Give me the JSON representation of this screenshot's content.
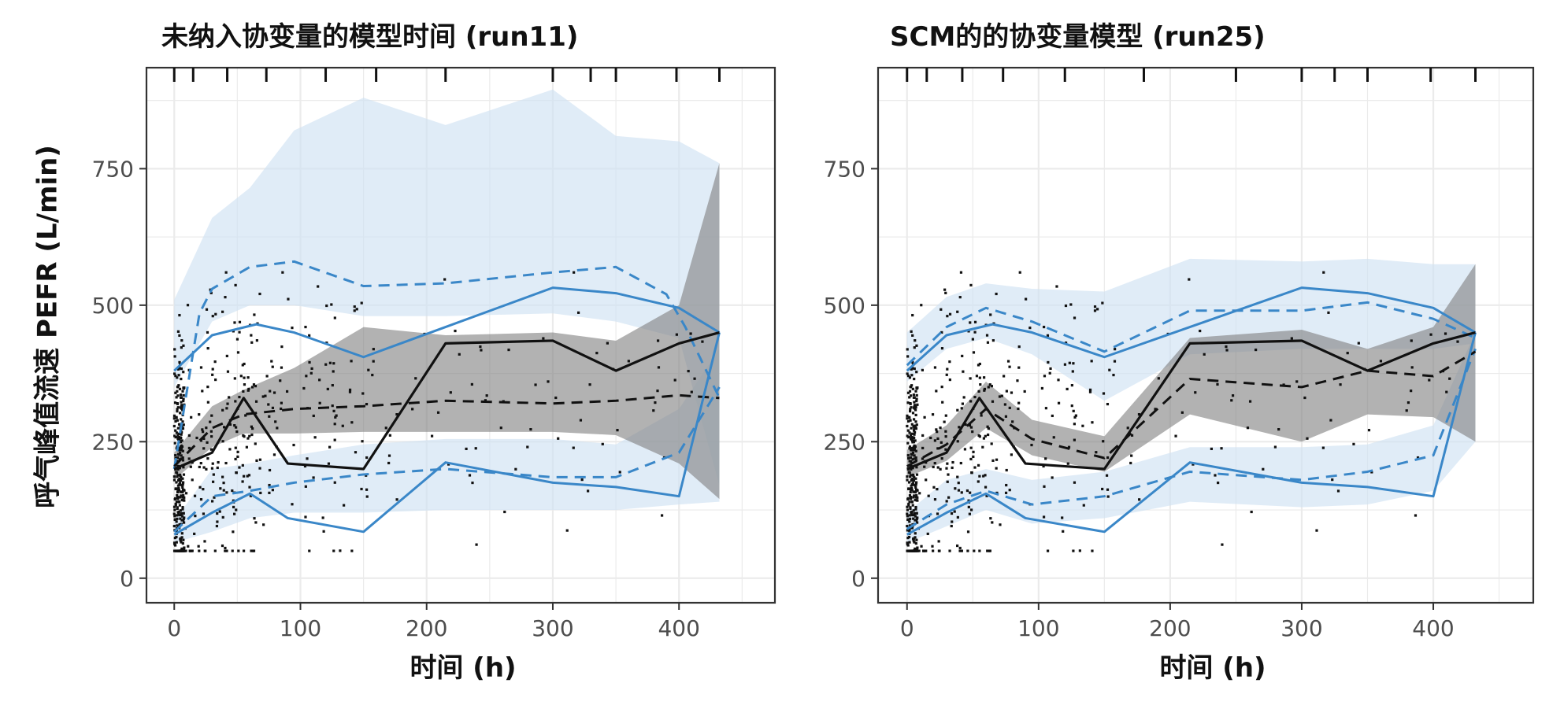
{
  "shared": {
    "ylabel": "呼气峰值流速 PEFR (L/min)",
    "xlabel": "时间 (h)"
  },
  "chart_data": [
    {
      "type": "line",
      "title": "未纳入协变量的模型时间 (run11)",
      "xlabel": "时间 (h)",
      "ylabel": "呼气峰值流速 PEFR (L/min)",
      "xlim": [
        -22,
        476
      ],
      "ylim": [
        -45,
        935
      ],
      "xticks": [
        0,
        100,
        200,
        300,
        400
      ],
      "yticks": [
        0,
        250,
        500,
        750
      ],
      "grid": true,
      "bin_times": [
        0,
        15,
        42,
        73,
        120,
        160,
        215,
        300,
        330,
        350,
        398,
        432
      ],
      "series": [
        {
          "kind": "observed_median",
          "x": [
            0,
            30,
            55,
            90,
            150,
            215,
            300,
            350,
            400,
            432
          ],
          "values": [
            200,
            230,
            330,
            210,
            200,
            430,
            435,
            380,
            430,
            450
          ]
        },
        {
          "kind": "observed_p95",
          "x": [
            0,
            30,
            65,
            95,
            150,
            215,
            300,
            350,
            400,
            432
          ],
          "values": [
            380,
            445,
            465,
            450,
            405,
            460,
            532,
            522,
            495,
            450
          ]
        },
        {
          "kind": "observed_p5",
          "x": [
            0,
            30,
            60,
            90,
            150,
            215,
            300,
            350,
            400,
            432
          ],
          "values": [
            80,
            120,
            155,
            110,
            85,
            212,
            175,
            167,
            150,
            450
          ]
        },
        {
          "kind": "predicted_median",
          "x": [
            0,
            30,
            55,
            95,
            150,
            215,
            300,
            350,
            400,
            432
          ],
          "values": [
            205,
            275,
            300,
            310,
            315,
            325,
            320,
            325,
            335,
            330
          ]
        },
        {
          "kind": "predicted_p95",
          "x": [
            0,
            20,
            30,
            60,
            95,
            150,
            215,
            300,
            350,
            390,
            405,
            432
          ],
          "values": [
            200,
            485,
            530,
            570,
            580,
            535,
            540,
            560,
            570,
            520,
            460,
            330
          ]
        },
        {
          "kind": "predicted_p5",
          "x": [
            0,
            30,
            60,
            95,
            150,
            215,
            300,
            350,
            400,
            432
          ],
          "values": [
            85,
            150,
            160,
            175,
            190,
            200,
            185,
            185,
            230,
            350
          ]
        },
        {
          "kind": "ci_median",
          "x": [
            0,
            30,
            55,
            95,
            150,
            215,
            300,
            350,
            400,
            432
          ],
          "low": [
            180,
            240,
            265,
            265,
            268,
            268,
            268,
            262,
            210,
            145
          ],
          "high": [
            230,
            315,
            345,
            385,
            460,
            445,
            450,
            435,
            500,
            760
          ]
        },
        {
          "kind": "ci_p95",
          "x": [
            0,
            30,
            60,
            95,
            150,
            215,
            300,
            350,
            400,
            432
          ],
          "low": [
            350,
            470,
            500,
            500,
            480,
            480,
            485,
            470,
            440,
            170
          ],
          "high": [
            510,
            660,
            715,
            820,
            880,
            830,
            895,
            810,
            800,
            760
          ]
        },
        {
          "kind": "ci_p5",
          "x": [
            0,
            30,
            60,
            95,
            150,
            215,
            300,
            350,
            400,
            432
          ],
          "low": [
            65,
            85,
            110,
            120,
            120,
            125,
            125,
            125,
            135,
            140
          ],
          "high": [
            105,
            200,
            210,
            225,
            245,
            255,
            255,
            245,
            310,
            420
          ]
        }
      ]
    },
    {
      "type": "line",
      "title": "SCM的的协变量模型 (run25)",
      "xlabel": "时间 (h)",
      "ylabel": "",
      "xlim": [
        -22,
        476
      ],
      "ylim": [
        -45,
        935
      ],
      "xticks": [
        0,
        100,
        200,
        300,
        400
      ],
      "yticks": [
        0,
        250,
        500,
        750
      ],
      "grid": true,
      "bin_times": [
        0,
        15,
        42,
        73,
        120,
        180,
        250,
        300,
        325,
        350,
        398,
        432
      ],
      "series": [
        {
          "kind": "observed_median",
          "x": [
            0,
            30,
            55,
            90,
            150,
            215,
            300,
            350,
            400,
            432
          ],
          "values": [
            200,
            230,
            330,
            210,
            200,
            430,
            435,
            380,
            430,
            450
          ]
        },
        {
          "kind": "observed_p95",
          "x": [
            0,
            30,
            65,
            95,
            150,
            215,
            300,
            350,
            400,
            432
          ],
          "values": [
            380,
            445,
            465,
            450,
            405,
            460,
            532,
            522,
            495,
            450
          ]
        },
        {
          "kind": "observed_p5",
          "x": [
            0,
            30,
            60,
            90,
            150,
            215,
            300,
            350,
            400,
            432
          ],
          "values": [
            80,
            120,
            155,
            110,
            85,
            212,
            175,
            167,
            150,
            450
          ]
        },
        {
          "kind": "predicted_median",
          "x": [
            0,
            30,
            60,
            95,
            150,
            215,
            300,
            350,
            400,
            432
          ],
          "values": [
            205,
            245,
            310,
            255,
            220,
            365,
            350,
            380,
            370,
            415
          ]
        },
        {
          "kind": "predicted_p95",
          "x": [
            0,
            30,
            60,
            95,
            150,
            215,
            300,
            350,
            400,
            432
          ],
          "values": [
            390,
            460,
            495,
            470,
            415,
            490,
            490,
            505,
            475,
            440
          ]
        },
        {
          "kind": "predicted_p5",
          "x": [
            0,
            30,
            60,
            95,
            150,
            215,
            300,
            350,
            400,
            432
          ],
          "values": [
            90,
            135,
            160,
            135,
            150,
            195,
            180,
            195,
            225,
            420
          ]
        },
        {
          "kind": "ci_median",
          "x": [
            0,
            30,
            60,
            95,
            150,
            215,
            300,
            350,
            400,
            432
          ],
          "low": [
            185,
            215,
            275,
            225,
            195,
            300,
            250,
            300,
            295,
            250
          ]
        },
        {
          "kind": "ci_median_high",
          "x": [
            0,
            30,
            60,
            95,
            150,
            215,
            300,
            350,
            400,
            432
          ],
          "values": [
            235,
            280,
            360,
            290,
            260,
            440,
            455,
            420,
            460,
            575
          ]
        },
        {
          "kind": "ci_p95",
          "x": [
            0,
            30,
            60,
            95,
            150,
            215,
            300,
            350,
            400,
            432
          ],
          "low": [
            360,
            420,
            440,
            410,
            325,
            410,
            420,
            420,
            420,
            430
          ],
          "high": [
            450,
            515,
            540,
            530,
            525,
            585,
            580,
            585,
            575,
            575
          ]
        },
        {
          "kind": "ci_p5",
          "x": [
            0,
            30,
            60,
            95,
            150,
            215,
            300,
            350,
            400,
            432
          ],
          "low": [
            65,
            95,
            125,
            100,
            110,
            140,
            130,
            135,
            160,
            250
          ],
          "high": [
            120,
            180,
            200,
            180,
            195,
            240,
            240,
            245,
            280,
            450
          ]
        }
      ]
    }
  ]
}
